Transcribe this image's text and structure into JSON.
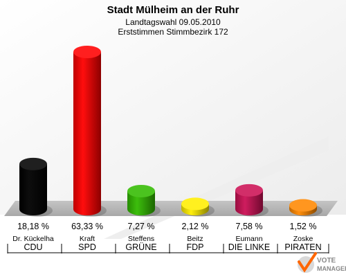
{
  "chart_data": {
    "type": "bar",
    "title": "Stadt Mülheim an der Ruhr",
    "subtitle": "Landtagswahl 09.05.2010",
    "subtitle2": "Erststimmen Stimmbezirk 172",
    "unit": "%",
    "ylim": [
      0,
      63.33
    ],
    "categories": [
      {
        "candidate": "Dr. Kückelha",
        "party": "CDU",
        "label": "18,18 %",
        "color": "#000000"
      },
      {
        "candidate": "Kraft",
        "party": "SPD",
        "label": "63,33 %",
        "color": "#ff0000"
      },
      {
        "candidate": "Steffens",
        "party": "GRÜNE",
        "label": "7,27 %",
        "color": "#33bb00"
      },
      {
        "candidate": "Beitz",
        "party": "FDP",
        "label": "2,12 %",
        "color": "#ffee00"
      },
      {
        "candidate": "Eumann",
        "party": "DIE LINKE",
        "label": "7,58 %",
        "color": "#cc1155"
      },
      {
        "candidate": "Zoske",
        "party": "PIRATEN",
        "label": "1,52 %",
        "color": "#ff8800"
      }
    ],
    "values": [
      18.18,
      63.33,
      7.27,
      2.12,
      7.58,
      1.52
    ]
  },
  "logo_text": "VOTE MANAGER"
}
